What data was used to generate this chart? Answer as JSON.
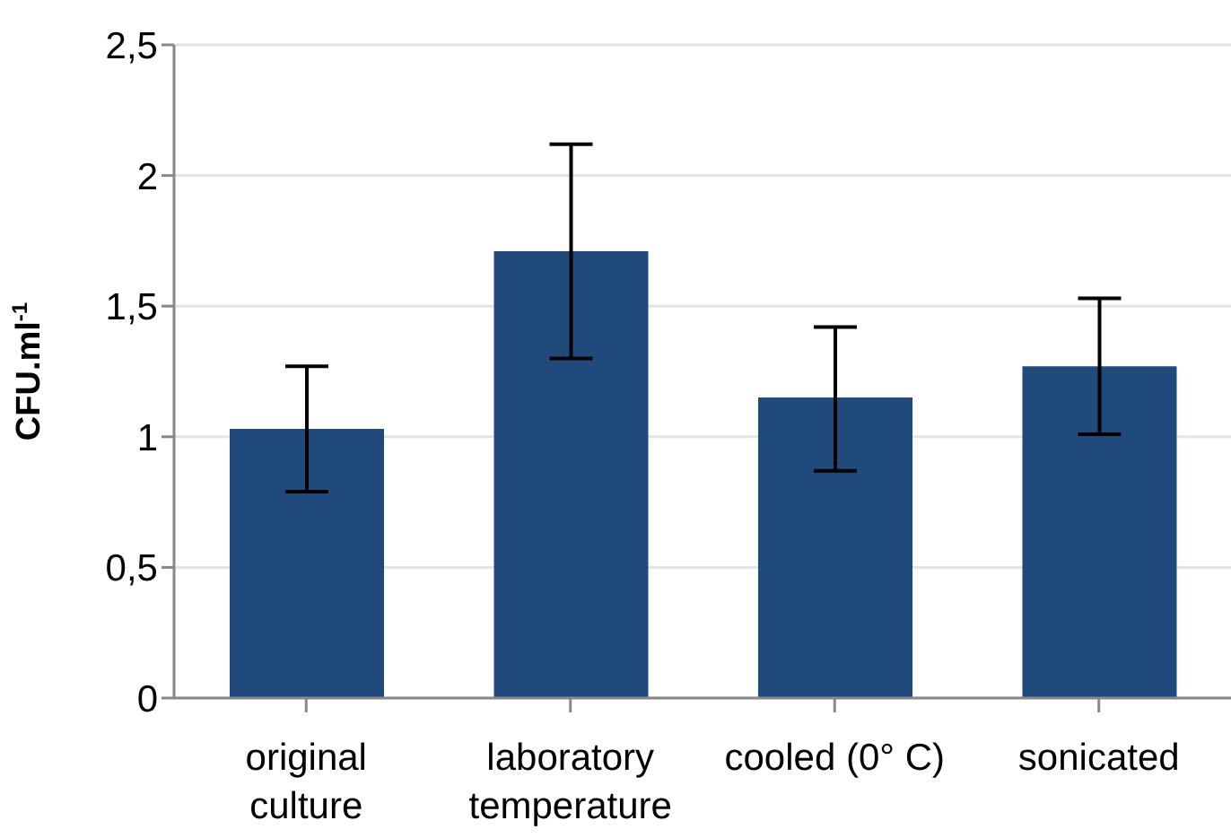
{
  "chart_data": {
    "type": "bar",
    "ylabel": "CFU.ml$^{-1}$",
    "categories": [
      "original culture",
      "laboratory temperature",
      "cooled (0° C)",
      "sonicated"
    ],
    "values": [
      1.03,
      1.71,
      1.15,
      1.27
    ],
    "errors": [
      [
        0.79,
        1.27
      ],
      [
        1.3,
        2.12
      ],
      [
        0.87,
        1.42
      ],
      [
        1.01,
        1.53
      ]
    ],
    "color": "#214a7c",
    "ylim": [
      0,
      2.5
    ],
    "yticks": [
      {
        "value": 0,
        "label": "0"
      },
      {
        "value": 0.5,
        "label": "0,5"
      },
      {
        "value": 1,
        "label": "1"
      },
      {
        "value": 1.5,
        "label": "1,5"
      },
      {
        "value": 2,
        "label": "2"
      },
      {
        "value": 2.5,
        "label": "2,5"
      }
    ],
    "grid": "y"
  }
}
